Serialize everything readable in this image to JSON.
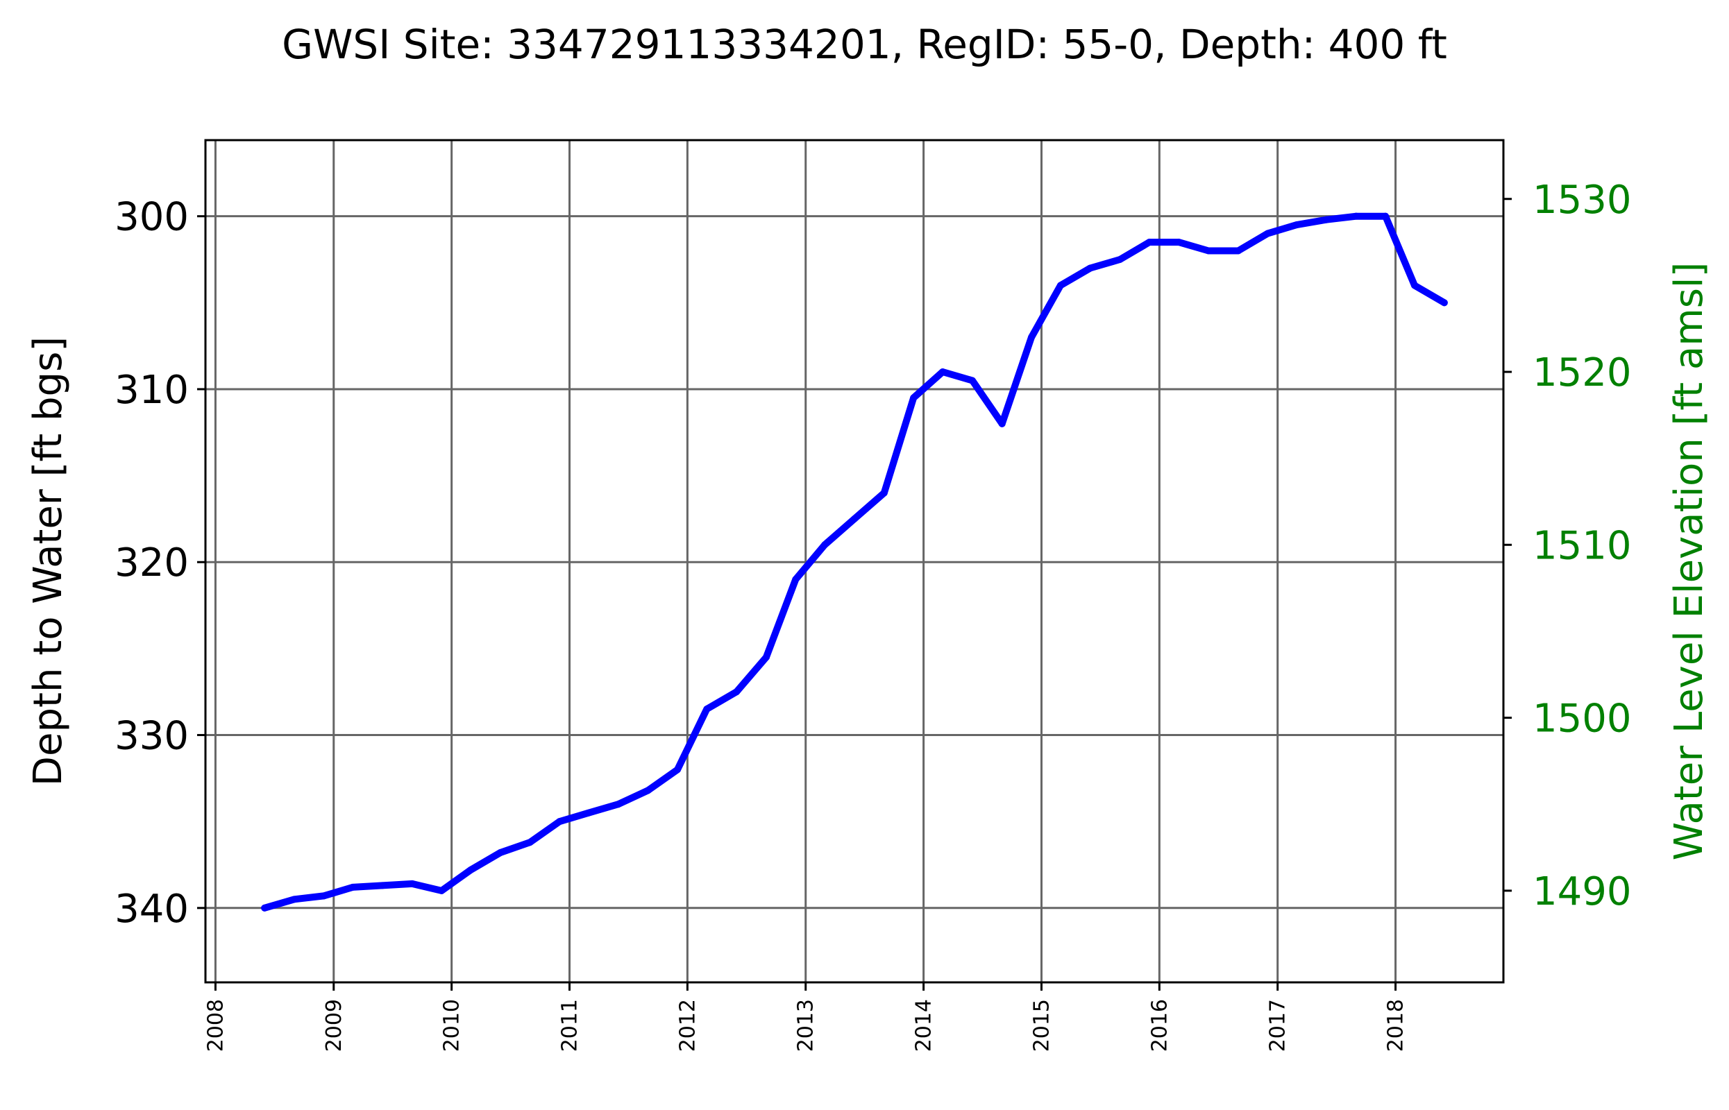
{
  "chart_data": {
    "type": "line",
    "title": "GWSI Site: 334729113334201, RegID: 55-0, Depth: 400 ft",
    "ylabel": "Depth to Water [ft bgs]",
    "y2label": "Water Level Elevation [ft amsl]",
    "xlabel": "",
    "x_tick_labels": [
      "2008",
      "2009",
      "2010",
      "2011",
      "2012",
      "2013",
      "2014",
      "2015",
      "2016",
      "2017",
      "2018"
    ],
    "x_range": [
      "2007-12-01",
      "2018-12-01"
    ],
    "y_tick_labels": [
      "300",
      "310",
      "320",
      "330",
      "340"
    ],
    "ylim": [
      344.3,
      295.6
    ],
    "y_inverted": true,
    "y2_tick_labels": [
      "1490",
      "1500",
      "1510",
      "1520",
      "1530"
    ],
    "y2lim": [
      1484.7,
      1533.4
    ],
    "grid": true,
    "colors": {
      "series": "#0000ff",
      "secondary_axis": "#008000",
      "grid": "#666666"
    },
    "series": [
      {
        "x": [
          "2008-06-01",
          "2008-09-01",
          "2008-12-01",
          "2009-03-01",
          "2009-06-01",
          "2009-09-01",
          "2009-12-01",
          "2010-03-01",
          "2010-06-01",
          "2010-09-01",
          "2010-12-01",
          "2011-03-01",
          "2011-06-01",
          "2011-09-01",
          "2011-12-01",
          "2012-03-01",
          "2012-06-01",
          "2012-09-01",
          "2012-12-01",
          "2013-03-01",
          "2013-06-01",
          "2013-09-01",
          "2013-12-01",
          "2014-03-01",
          "2014-06-01",
          "2014-09-01",
          "2014-12-01",
          "2015-03-01",
          "2015-06-01",
          "2015-09-01",
          "2015-12-01",
          "2016-03-01",
          "2016-06-01",
          "2016-09-01",
          "2016-12-01",
          "2017-03-01",
          "2017-06-01",
          "2017-09-01",
          "2017-12-01",
          "2018-03-01",
          "2018-06-01"
        ],
        "y": [
          340.0,
          339.5,
          339.3,
          338.8,
          338.7,
          338.6,
          339.0,
          337.8,
          336.8,
          336.2,
          335.0,
          334.5,
          334.0,
          333.2,
          332.0,
          328.5,
          327.5,
          325.5,
          321.0,
          319.0,
          317.5,
          316.0,
          310.5,
          309.0,
          309.5,
          312.0,
          307.0,
          304.0,
          303.0,
          302.5,
          301.5,
          301.5,
          302.0,
          302.0,
          301.0,
          300.5,
          300.2,
          300.0,
          300.0,
          304.0,
          305.0
        ]
      }
    ]
  }
}
